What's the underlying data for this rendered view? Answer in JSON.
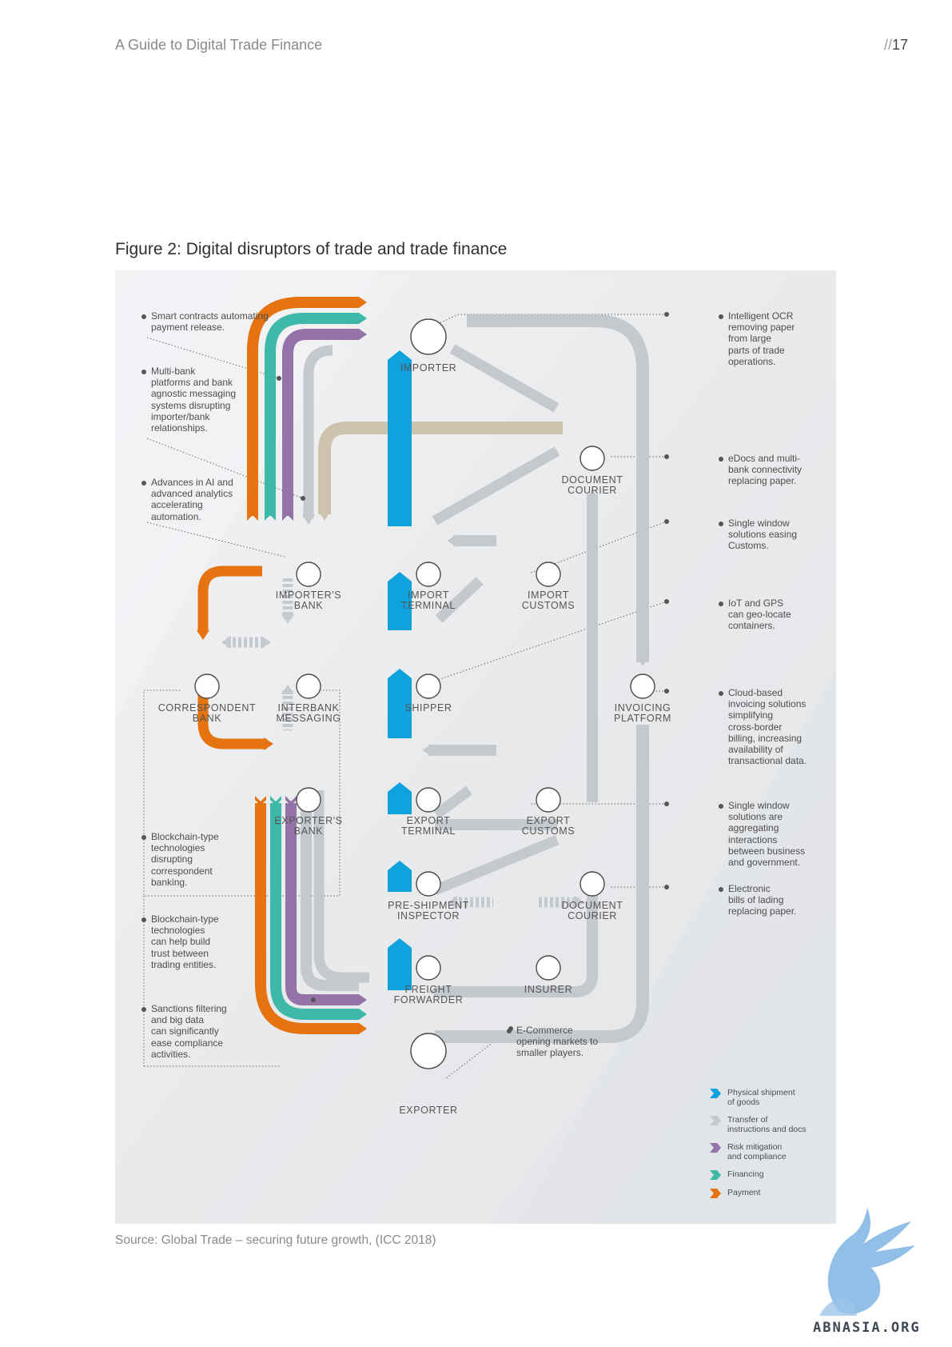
{
  "header": {
    "doc_title": "A Guide to Digital Trade Finance",
    "page_prefix": "//",
    "page_number": "17"
  },
  "figure": {
    "title": "Figure 2: Digital disruptors of trade and trade finance",
    "source": "Source: Global Trade – securing future growth, (ICC 2018)"
  },
  "nodes": {
    "importer": "IMPORTER",
    "importers_bank": "IMPORTER'S\nBANK",
    "import_terminal": "IMPORT\nTERMINAL",
    "import_customs": "IMPORT\nCUSTOMS",
    "document_courier_top": "DOCUMENT\nCOURIER",
    "correspondent_bank": "CORRESPONDENT\nBANK",
    "interbank_messaging": "INTERBANK\nMESSAGING",
    "shipper": "SHIPPER",
    "invoicing_platform": "INVOICING\nPLATFORM",
    "exporters_bank": "EXPORTER'S\nBANK",
    "export_terminal": "EXPORT\nTERMINAL",
    "export_customs": "EXPORT\nCUSTOMS",
    "pre_shipment_inspector": "PRE-SHIPMENT\nINSPECTOR",
    "document_courier_bottom": "DOCUMENT\nCOURIER",
    "freight_forwarder": "FREIGHT\nFORWARDER",
    "insurer": "INSURER",
    "exporter": "EXPORTER"
  },
  "notes": {
    "smart_contracts": "Smart contracts automating\npayment release.",
    "multi_bank": "Multi-bank\nplatforms and bank\nagnostic messaging\nsystems disrupting\nimporter/bank\nrelationships.",
    "ai_analytics": "Advances in AI and\nadvanced analytics\naccelerating\nautomation.",
    "blockchain_correspondent": "Blockchain-type\ntechnologies\ndisrupting\ncorrespondent\nbanking.",
    "blockchain_trust": "Blockchain-type\ntechnologies\ncan help build\ntrust between\ntrading entities.",
    "sanctions": "Sanctions filtering\nand big data\ncan significantly\nease compliance\nactivities.",
    "ocr": "Intelligent OCR\nremoving paper\nfrom large\nparts of trade\noperations.",
    "edocs": "eDocs and multi-\nbank connectivity\nreplacing paper.",
    "single_window_customs": "Single window\nsolutions easing\nCustoms.",
    "iot_gps": "IoT and GPS\ncan geo-locate\ncontainers.",
    "cloud_invoicing": "Cloud-based\ninvoicing solutions\nsimplifying\ncross-border\nbilling, increasing\navailability of\ntransactional data.",
    "single_window_aggregating": "Single window\nsolutions are\naggregating\ninteractions\nbetween business\nand government.",
    "electronic_bills": "Electronic\nbills of lading\nreplacing paper.",
    "ecommerce": "E-Commerce\nopening markets to\nsmaller players."
  },
  "legend": [
    {
      "label": "Physical shipment\nof goods",
      "color": "#10a2dd"
    },
    {
      "label": "Transfer of\ninstructions and docs",
      "color": "#c5c8cc"
    },
    {
      "label": "Risk mitigation\nand compliance",
      "color": "#9473a8"
    },
    {
      "label": "Financing",
      "color": "#3eb8a8"
    },
    {
      "label": "Payment",
      "color": "#e5730f"
    }
  ],
  "colors": {
    "shipment": "#10a2dd",
    "instructions": "#c5c8cc",
    "risk": "#9473a8",
    "financing": "#3eb8a8",
    "payment": "#e5730f",
    "beige": "#cdc3ae"
  },
  "watermark": {
    "text": "ABNASIA.ORG"
  }
}
